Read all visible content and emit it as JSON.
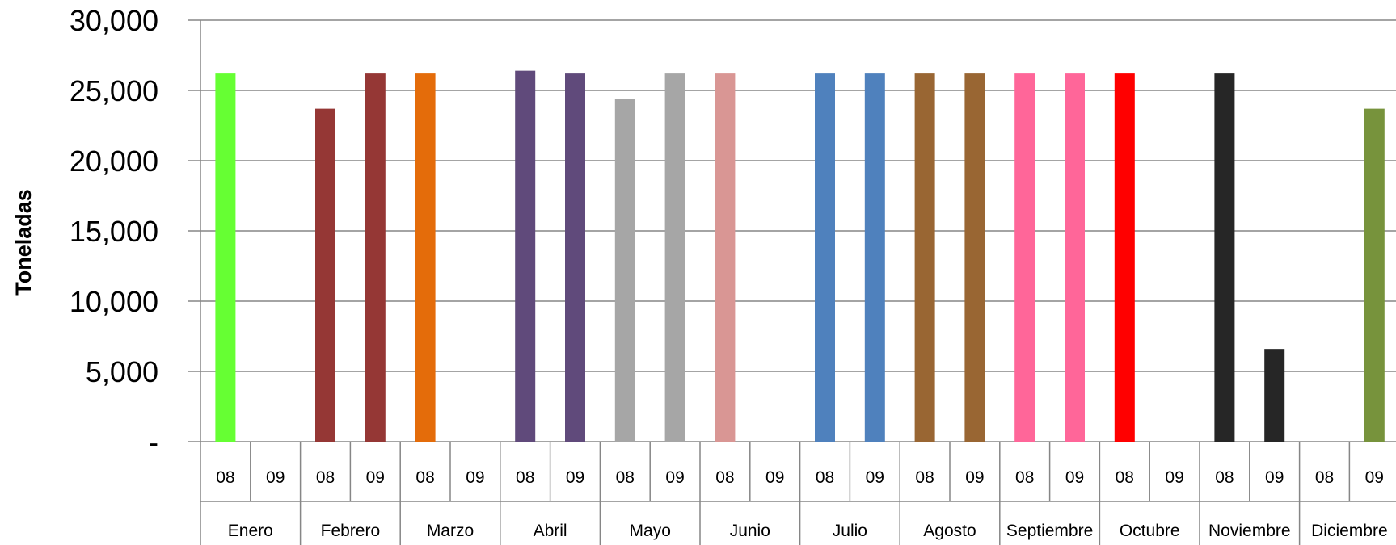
{
  "chart_data": {
    "type": "bar",
    "ylabel": "Toneladas",
    "ylim": [
      0,
      30000
    ],
    "yticks": [
      "-",
      "5,000",
      "10,000",
      "15,000",
      "20,000",
      "25,000",
      "30,000"
    ],
    "ytick_values": [
      0,
      5000,
      10000,
      15000,
      20000,
      25000,
      30000
    ],
    "grid": true,
    "months": [
      {
        "name": "Enero",
        "color": "#66FF33",
        "values": {
          "08": 26200,
          "09": 0
        }
      },
      {
        "name": "Febrero",
        "color": "#953735",
        "values": {
          "08": 23700,
          "09": 26200
        }
      },
      {
        "name": "Marzo",
        "color": "#E46C0A",
        "values": {
          "08": 26200,
          "09": 0
        }
      },
      {
        "name": "Abril",
        "color": "#604A7B",
        "values": {
          "08": 26400,
          "09": 26200
        }
      },
      {
        "name": "Mayo",
        "color": "#A6A6A6",
        "values": {
          "08": 24400,
          "09": 26200
        }
      },
      {
        "name": "Junio",
        "color": "#D99694",
        "values": {
          "08": 26200,
          "09": 0
        }
      },
      {
        "name": "Julio",
        "color": "#4F81BD",
        "values": {
          "08": 26200,
          "09": 26200
        }
      },
      {
        "name": "Agosto",
        "color": "#996633",
        "values": {
          "08": 26200,
          "09": 26200
        }
      },
      {
        "name": "Septiembre",
        "color": "#FF6699",
        "values": {
          "08": 26200,
          "09": 26200
        }
      },
      {
        "name": "Octubre",
        "color": "#FF0000",
        "values": {
          "08": 26200,
          "09": 0
        }
      },
      {
        "name": "Noviembre",
        "color": "#262626",
        "values": {
          "08": 26200,
          "09": 6600
        }
      },
      {
        "name": "Diciembre",
        "color": "#77933C",
        "values": {
          "08": 0,
          "09": 23700
        }
      }
    ],
    "years": [
      "08",
      "09"
    ]
  }
}
